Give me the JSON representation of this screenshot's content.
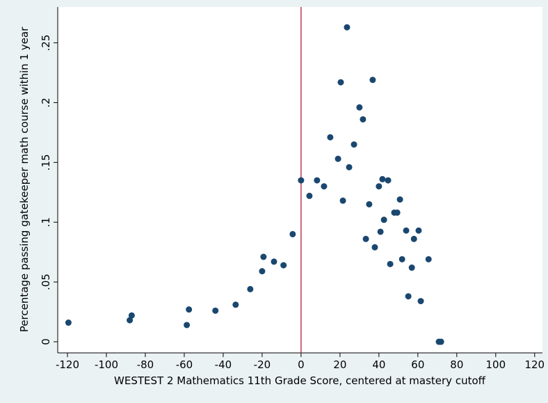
{
  "chart_data": {
    "type": "scatter",
    "x_label": "WESTEST 2 Mathematics 11th Grade Score, centered at mastery cutoff",
    "y_label": "Percentage passing gatekeeper math course within 1 year",
    "xlim": [
      -125,
      124
    ],
    "ylim": [
      -0.0093,
      0.28
    ],
    "xticks": [
      -120,
      -100,
      -80,
      -60,
      -40,
      -20,
      0,
      20,
      40,
      60,
      80,
      100,
      120
    ],
    "yticks": [
      0,
      {
        "value": 0.05,
        "label": ".05"
      },
      {
        "value": 0.1,
        "label": ".1"
      },
      {
        "value": 0.15,
        "label": ".15"
      },
      {
        "value": 0.2,
        "label": ".2"
      },
      {
        "value": 0.25,
        "label": ".25"
      }
    ],
    "grid": false,
    "xline": 0,
    "xline_color": "#c0394b",
    "color": "#1a476f",
    "x": [
      -119.5,
      -88,
      -87,
      -58.7,
      -57.6,
      -44,
      -33.6,
      -26.1,
      -20,
      -19.3,
      -13.9,
      -9,
      -4.3,
      0,
      4.3,
      8.2,
      11.8,
      15,
      19,
      20.4,
      21.5,
      23.6,
      24.7,
      27.2,
      30,
      31.8,
      33.3,
      35,
      36.8,
      37.9,
      40,
      40.8,
      41.8,
      42.6,
      44.7,
      45.8,
      47.9,
      49.4,
      50.8,
      51.9,
      54,
      55.1,
      56.9,
      58,
      60.4,
      61.5,
      65.5,
      70.8,
      71.9
    ],
    "y": [
      0.016,
      0.018,
      0.022,
      0.014,
      0.027,
      0.026,
      0.031,
      0.044,
      0.059,
      0.071,
      0.067,
      0.064,
      0.09,
      0.135,
      0.122,
      0.135,
      0.13,
      0.171,
      0.153,
      0.217,
      0.118,
      0.263,
      0.146,
      0.165,
      0.196,
      0.186,
      0.086,
      0.115,
      0.219,
      0.079,
      0.13,
      0.092,
      0.136,
      0.102,
      0.135,
      0.065,
      0.108,
      0.108,
      0.119,
      0.069,
      0.093,
      0.038,
      0.062,
      0.086,
      0.093,
      0.034,
      0.069,
      0,
      0
    ]
  }
}
